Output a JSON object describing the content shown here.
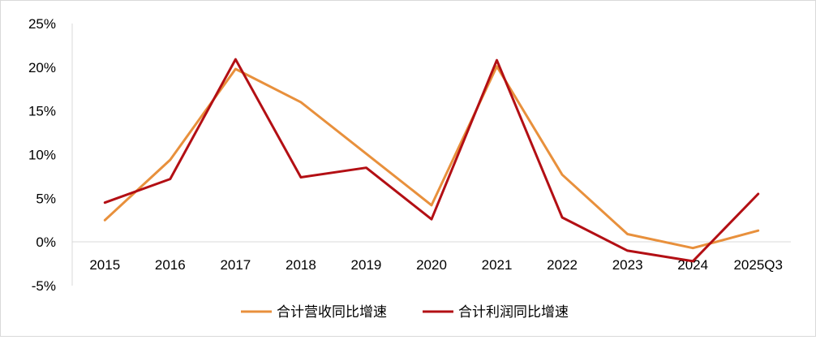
{
  "chart_data": {
    "type": "line",
    "x": [
      "2015",
      "2016",
      "2017",
      "2018",
      "2019",
      "2020",
      "2021",
      "2022",
      "2023",
      "2024",
      "2025Q3"
    ],
    "y_ticks": [
      "25%",
      "20%",
      "15%",
      "10%",
      "5%",
      "0%",
      "-5%"
    ],
    "ylim": [
      -5,
      25
    ],
    "y_unit": "%",
    "grid": false,
    "legend_position": "bottom",
    "series": [
      {
        "name": "合计营收同比增速",
        "color": "#E8903C",
        "values": [
          2.5,
          9.4,
          19.8,
          16.0,
          10.1,
          4.2,
          20.1,
          7.7,
          0.9,
          -0.7,
          1.3
        ]
      },
      {
        "name": "合计利润同比增速",
        "color": "#B30F14",
        "values": [
          4.5,
          7.2,
          20.9,
          7.4,
          8.5,
          2.6,
          20.8,
          2.8,
          -1.0,
          -2.2,
          5.5
        ]
      }
    ]
  }
}
